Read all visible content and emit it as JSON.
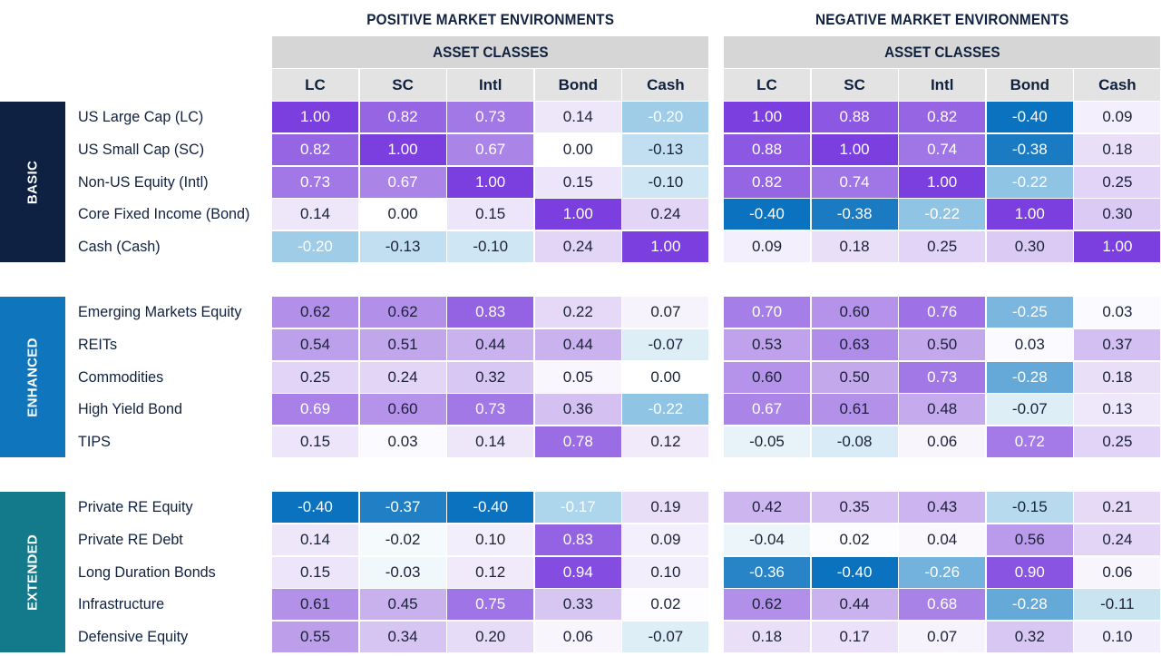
{
  "chart_data": {
    "type": "heatmap",
    "panels": [
      {
        "title": "POSITIVE MARKET ENVIRONMENTS",
        "subheader": "ASSET CLASSES"
      },
      {
        "title": "NEGATIVE MARKET ENVIRONMENTS",
        "subheader": "ASSET CLASSES"
      }
    ],
    "columns": [
      "LC",
      "SC",
      "Intl",
      "Bond",
      "Cash"
    ],
    "groups": [
      {
        "name": "BASIC",
        "color": "#0e2142",
        "rows": [
          {
            "label": "US Large Cap (LC)",
            "positive": [
              1.0,
              0.82,
              0.73,
              0.14,
              -0.2
            ],
            "negative": [
              1.0,
              0.88,
              0.82,
              -0.4,
              0.09
            ]
          },
          {
            "label": "US Small Cap (SC)",
            "positive": [
              0.82,
              1.0,
              0.67,
              0.0,
              -0.13
            ],
            "negative": [
              0.88,
              1.0,
              0.74,
              -0.38,
              0.18
            ]
          },
          {
            "label": "Non-US Equity (Intl)",
            "positive": [
              0.73,
              0.67,
              1.0,
              0.15,
              -0.1
            ],
            "negative": [
              0.82,
              0.74,
              1.0,
              -0.22,
              0.25
            ]
          },
          {
            "label": "Core Fixed Income (Bond)",
            "positive": [
              0.14,
              0.0,
              0.15,
              1.0,
              0.24
            ],
            "negative": [
              -0.4,
              -0.38,
              -0.22,
              1.0,
              0.3
            ]
          },
          {
            "label": "Cash (Cash)",
            "positive": [
              -0.2,
              -0.13,
              -0.1,
              0.24,
              1.0
            ],
            "negative": [
              0.09,
              0.18,
              0.25,
              0.3,
              1.0
            ]
          }
        ]
      },
      {
        "name": "ENHANCED",
        "color": "#0f75bc",
        "rows": [
          {
            "label": "Emerging Markets Equity",
            "positive": [
              0.62,
              0.62,
              0.83,
              0.22,
              0.07
            ],
            "negative": [
              0.7,
              0.6,
              0.76,
              -0.25,
              0.03
            ]
          },
          {
            "label": "REITs",
            "positive": [
              0.54,
              0.51,
              0.44,
              0.44,
              -0.07
            ],
            "negative": [
              0.53,
              0.63,
              0.5,
              0.03,
              0.37
            ]
          },
          {
            "label": "Commodities",
            "positive": [
              0.25,
              0.24,
              0.32,
              0.05,
              0.0
            ],
            "negative": [
              0.6,
              0.5,
              0.73,
              -0.28,
              0.18
            ]
          },
          {
            "label": "High Yield Bond",
            "positive": [
              0.69,
              0.6,
              0.73,
              0.36,
              -0.22
            ],
            "negative": [
              0.67,
              0.61,
              0.48,
              -0.07,
              0.13
            ]
          },
          {
            "label": "TIPS",
            "positive": [
              0.15,
              0.03,
              0.14,
              0.78,
              0.12
            ],
            "negative": [
              -0.05,
              -0.08,
              0.06,
              0.72,
              0.25
            ]
          }
        ]
      },
      {
        "name": "EXTENDED",
        "color": "#127a8a",
        "rows": [
          {
            "label": "Private RE Equity",
            "positive": [
              -0.4,
              -0.37,
              -0.4,
              -0.17,
              0.19
            ],
            "negative": [
              0.42,
              0.35,
              0.43,
              -0.15,
              0.21
            ]
          },
          {
            "label": "Private RE Debt",
            "positive": [
              0.14,
              -0.02,
              0.1,
              0.83,
              0.09
            ],
            "negative": [
              -0.04,
              0.02,
              0.04,
              0.56,
              0.24
            ]
          },
          {
            "label": "Long Duration Bonds",
            "positive": [
              0.15,
              -0.03,
              0.12,
              0.94,
              0.1
            ],
            "negative": [
              -0.36,
              -0.4,
              -0.26,
              0.9,
              0.06
            ]
          },
          {
            "label": "Infrastructure",
            "positive": [
              0.61,
              0.45,
              0.75,
              0.33,
              0.02
            ],
            "negative": [
              0.62,
              0.44,
              0.68,
              -0.28,
              -0.11
            ]
          },
          {
            "label": "Defensive Equity",
            "positive": [
              0.55,
              0.34,
              0.2,
              0.06,
              -0.07
            ],
            "negative": [
              0.18,
              0.17,
              0.07,
              0.32,
              0.1
            ]
          }
        ]
      }
    ],
    "colors": {
      "high_positive": "#7b3fe0",
      "mid_positive": "#c3a8ec",
      "near_zero": "#ffffff",
      "mid_negative": "#9fcde8",
      "high_negative": "#0b72bf"
    }
  }
}
